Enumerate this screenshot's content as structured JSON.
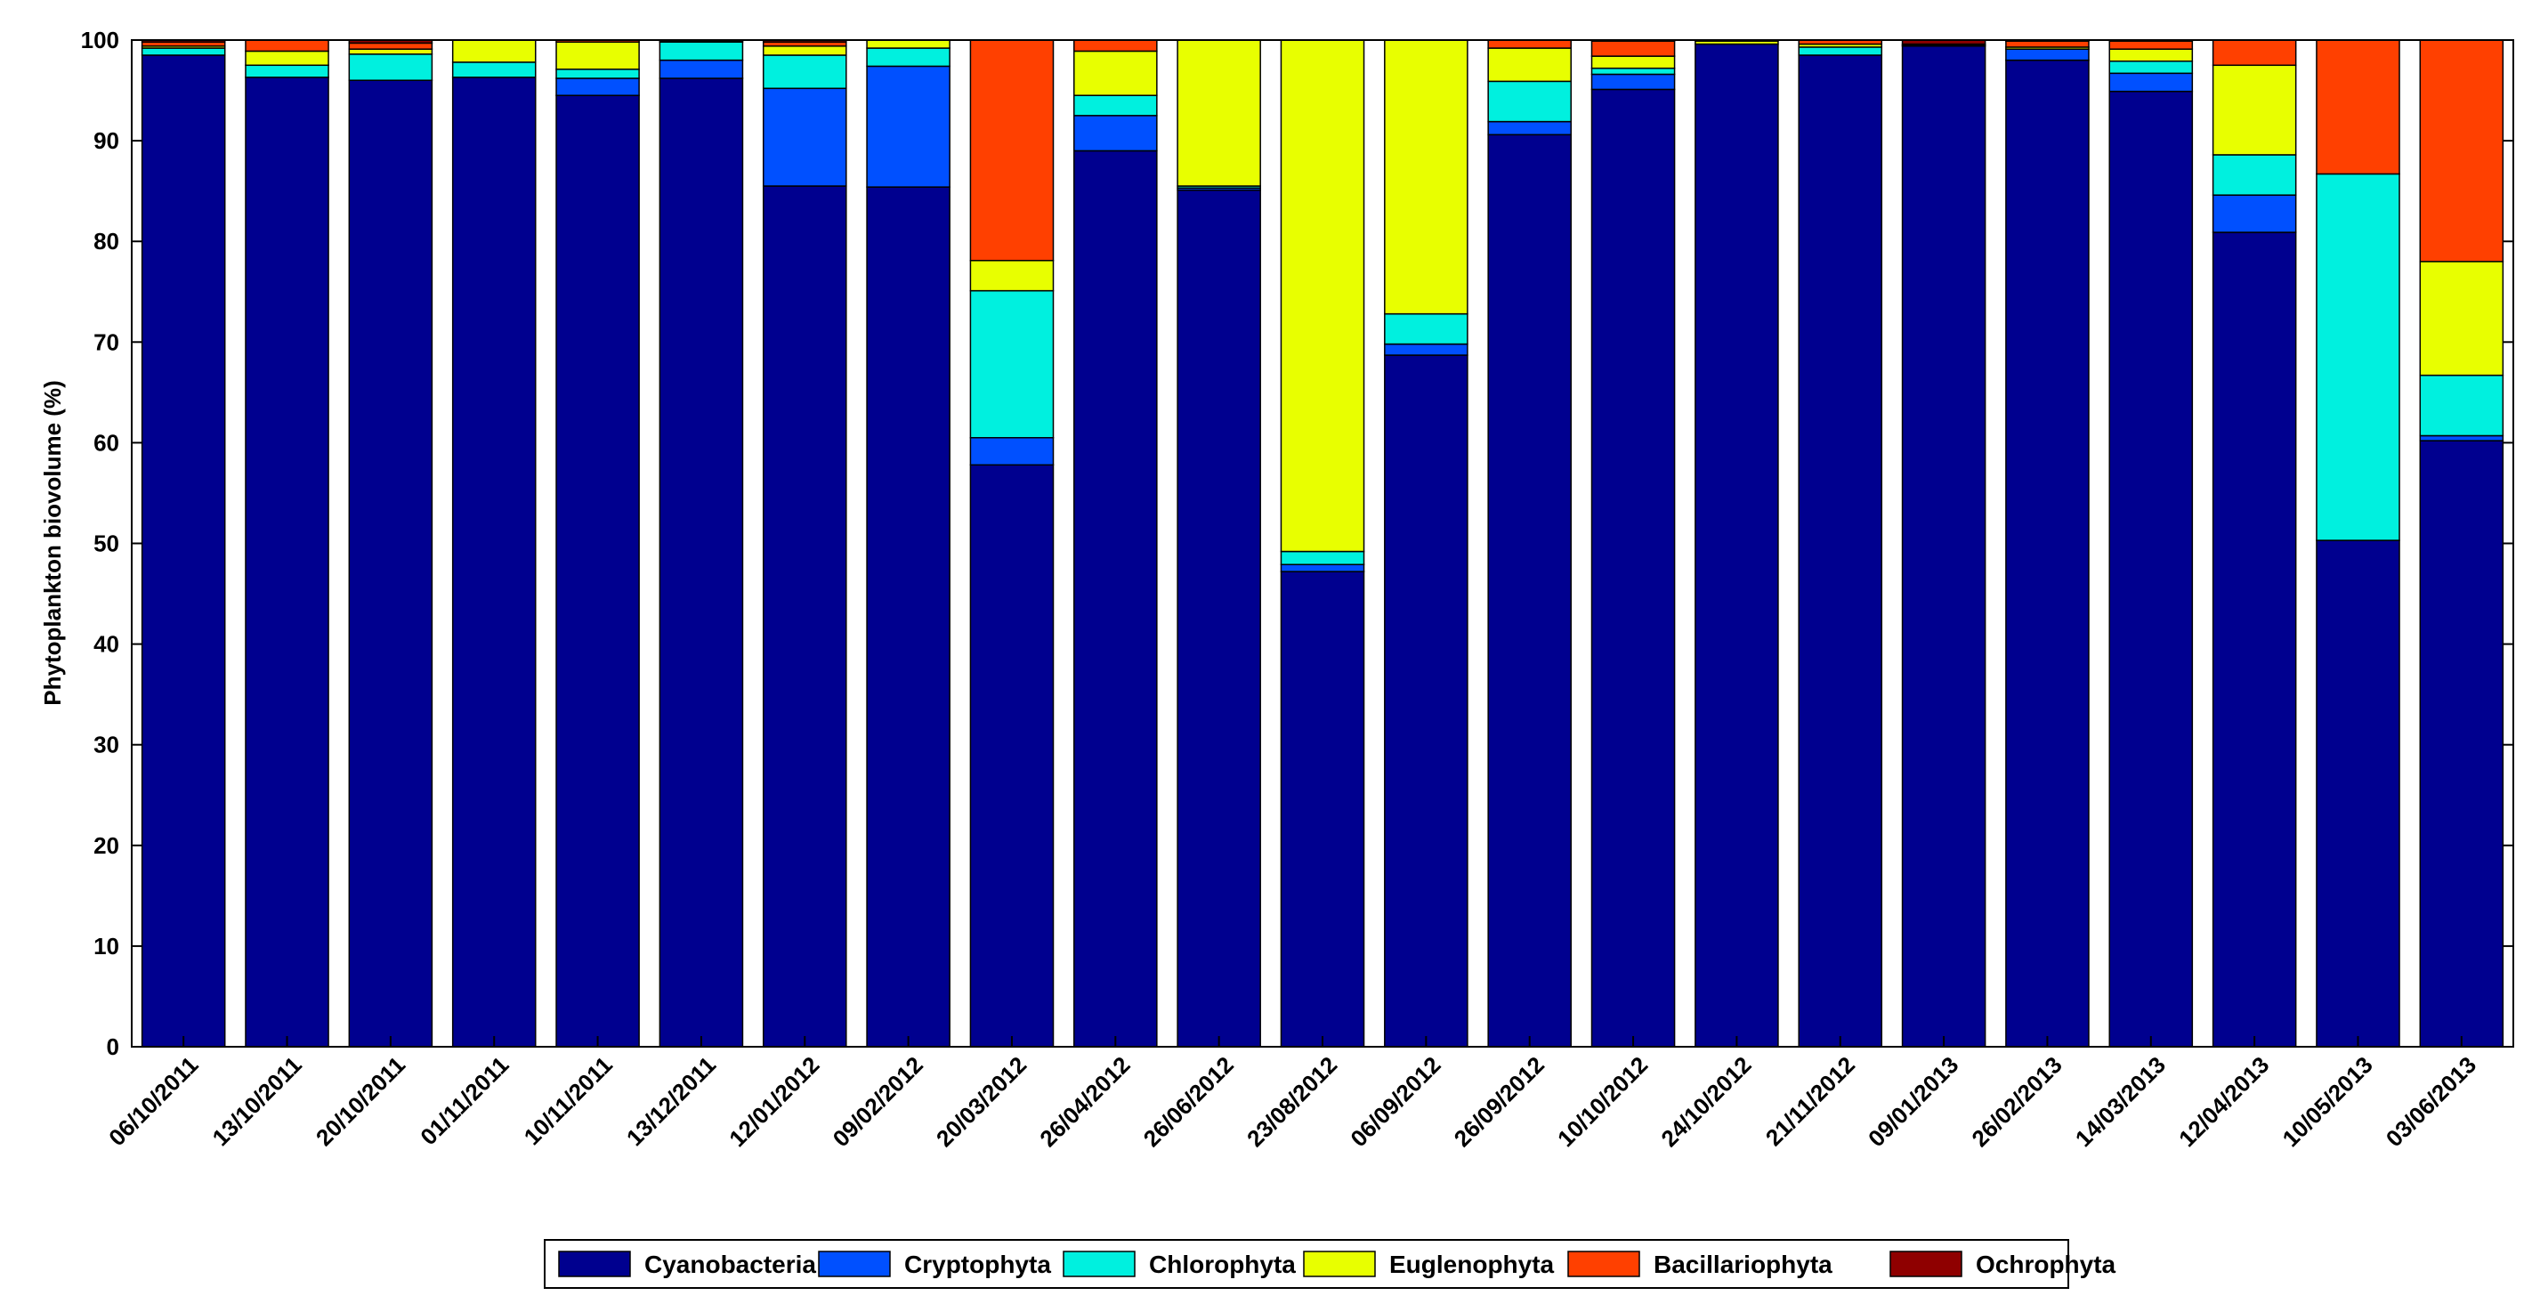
{
  "chart_data": {
    "type": "bar",
    "stacked": true,
    "title": "",
    "xlabel": "",
    "ylabel": "Phytoplankton biovolume (%)",
    "ylim": [
      0,
      100
    ],
    "yticks": [
      0,
      10,
      20,
      30,
      40,
      50,
      60,
      70,
      80,
      90,
      100
    ],
    "ytick_labels": [
      "0",
      "10",
      "20",
      "30",
      "40",
      "50",
      "60",
      "70",
      "80",
      "90",
      "100"
    ],
    "legend_position": "bottom",
    "grid": false,
    "categories": [
      "06/10/2011",
      "13/10/2011",
      "20/10/2011",
      "01/11/2011",
      "10/11/2011",
      "13/12/2011",
      "12/01/2012",
      "09/02/2012",
      "20/03/2012",
      "26/04/2012",
      "26/06/2012",
      "23/08/2012",
      "06/09/2012",
      "26/09/2012",
      "10/10/2012",
      "24/10/2012",
      "21/11/2012",
      "09/01/2013",
      "26/02/2013",
      "14/03/2013",
      "12/04/2013",
      "10/05/2013",
      "03/06/2013"
    ],
    "series": [
      {
        "name": "Cyanobacteria",
        "color": "#00008F",
        "values": [
          98.5,
          96.3,
          96.0,
          96.3,
          94.5,
          96.2,
          85.5,
          85.4,
          57.8,
          89.0,
          85.1,
          47.2,
          68.7,
          90.6,
          95.1,
          99.6,
          98.5,
          99.4,
          98.0,
          94.9,
          80.9,
          50.3,
          60.2
        ]
      },
      {
        "name": "Cryptophyta",
        "color": "#0050FF",
        "values": [
          0.0,
          0.0,
          0.0,
          0.0,
          1.7,
          1.8,
          9.7,
          12.0,
          2.7,
          3.5,
          0.2,
          0.7,
          1.1,
          1.3,
          1.5,
          0.0,
          0.0,
          0.0,
          1.1,
          1.8,
          3.7,
          0.0,
          0.5
        ]
      },
      {
        "name": "Chlorophyta",
        "color": "#00F0DF",
        "values": [
          0.7,
          1.2,
          2.6,
          1.5,
          0.9,
          1.8,
          3.3,
          1.8,
          14.6,
          2.0,
          0.2,
          1.3,
          3.0,
          4.0,
          0.6,
          0.0,
          0.8,
          0.0,
          0.0,
          1.2,
          4.0,
          36.4,
          6.0
        ]
      },
      {
        "name": "Euglenophyta",
        "color": "#E8FF00",
        "values": [
          0.2,
          1.4,
          0.5,
          2.2,
          2.7,
          0.1,
          0.9,
          0.8,
          3.0,
          4.4,
          14.5,
          50.8,
          27.2,
          3.3,
          1.2,
          0.3,
          0.3,
          0.1,
          0.2,
          1.2,
          8.9,
          0.0,
          11.3
        ]
      },
      {
        "name": "Bacillariophyta",
        "color": "#FF4000",
        "values": [
          0.4,
          1.1,
          0.6,
          0.0,
          0.2,
          0.1,
          0.4,
          0.0,
          21.9,
          1.1,
          0.0,
          0.0,
          0.0,
          0.8,
          1.5,
          0.1,
          0.4,
          0.1,
          0.6,
          0.8,
          2.5,
          13.3,
          22.0
        ]
      },
      {
        "name": "Ochrophyta",
        "color": "#8F0000",
        "values": [
          0.2,
          0.0,
          0.3,
          0.0,
          0.0,
          0.0,
          0.2,
          0.0,
          0.0,
          0.0,
          0.0,
          0.0,
          0.0,
          0.0,
          0.1,
          0.0,
          0.0,
          0.4,
          0.1,
          0.1,
          0.0,
          0.0,
          0.0
        ]
      }
    ]
  }
}
